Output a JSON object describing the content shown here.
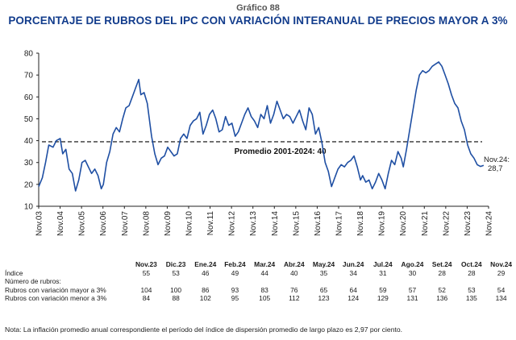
{
  "figure": {
    "number": "Gráfico 88",
    "title": "PORCENTAJE DE RUBROS DEL IPC CON VARIACIÓN INTERANUAL DE PRECIOS MAYOR A 3%"
  },
  "chart_data": {
    "type": "line",
    "ylim": [
      10,
      80
    ],
    "yticks": [
      10,
      20,
      30,
      40,
      50,
      60,
      70,
      80
    ],
    "xlabels": [
      "Nov.03",
      "Nov.04",
      "Nov.05",
      "Nov.06",
      "Nov.07",
      "Nov.08",
      "Nov.09",
      "Nov.10",
      "Nov.11",
      "Nov.12",
      "Nov.13",
      "Nov.14",
      "Nov.15",
      "Nov.16",
      "Nov.17",
      "Nov.18",
      "Nov.19",
      "Nov.20",
      "Nov.21",
      "Nov.22",
      "Nov.23",
      "Nov.24"
    ],
    "grid": false,
    "line_color": "#1f4fa3",
    "reference_line": {
      "label": "Promedio 2001-2024: 40",
      "value": 39.5,
      "style": "dashed"
    },
    "annotation": {
      "line1": "Nov.24:",
      "line2": "28,7"
    },
    "series": [
      {
        "points": [
          [
            2003.83,
            19
          ],
          [
            2004.0,
            23
          ],
          [
            2004.15,
            30
          ],
          [
            2004.3,
            38
          ],
          [
            2004.5,
            37
          ],
          [
            2004.65,
            40
          ],
          [
            2004.83,
            41
          ],
          [
            2004.95,
            34
          ],
          [
            2005.1,
            36
          ],
          [
            2005.25,
            27
          ],
          [
            2005.4,
            25
          ],
          [
            2005.55,
            17
          ],
          [
            2005.7,
            22
          ],
          [
            2005.85,
            30
          ],
          [
            2006.0,
            31
          ],
          [
            2006.15,
            28
          ],
          [
            2006.3,
            25
          ],
          [
            2006.45,
            27
          ],
          [
            2006.6,
            24
          ],
          [
            2006.75,
            18
          ],
          [
            2006.85,
            20
          ],
          [
            2007.0,
            30
          ],
          [
            2007.15,
            35
          ],
          [
            2007.3,
            43
          ],
          [
            2007.45,
            46
          ],
          [
            2007.6,
            44
          ],
          [
            2007.75,
            50
          ],
          [
            2007.9,
            55
          ],
          [
            2008.05,
            56
          ],
          [
            2008.2,
            60
          ],
          [
            2008.35,
            64
          ],
          [
            2008.5,
            68
          ],
          [
            2008.6,
            61
          ],
          [
            2008.75,
            62
          ],
          [
            2008.9,
            57
          ],
          [
            2009.1,
            42
          ],
          [
            2009.25,
            34
          ],
          [
            2009.4,
            29
          ],
          [
            2009.55,
            32
          ],
          [
            2009.7,
            33
          ],
          [
            2009.85,
            37
          ],
          [
            2010.0,
            35
          ],
          [
            2010.15,
            33
          ],
          [
            2010.3,
            34
          ],
          [
            2010.45,
            41
          ],
          [
            2010.6,
            43
          ],
          [
            2010.75,
            41
          ],
          [
            2010.9,
            47
          ],
          [
            2011.05,
            49
          ],
          [
            2011.2,
            50
          ],
          [
            2011.35,
            53
          ],
          [
            2011.5,
            43
          ],
          [
            2011.65,
            47
          ],
          [
            2011.8,
            52
          ],
          [
            2011.95,
            54
          ],
          [
            2012.1,
            50
          ],
          [
            2012.25,
            44
          ],
          [
            2012.4,
            45
          ],
          [
            2012.55,
            51
          ],
          [
            2012.7,
            47
          ],
          [
            2012.85,
            48
          ],
          [
            2013.0,
            42
          ],
          [
            2013.15,
            44
          ],
          [
            2013.3,
            48
          ],
          [
            2013.45,
            52
          ],
          [
            2013.6,
            55
          ],
          [
            2013.75,
            51
          ],
          [
            2013.9,
            49
          ],
          [
            2014.05,
            46
          ],
          [
            2014.2,
            52
          ],
          [
            2014.35,
            50
          ],
          [
            2014.5,
            56
          ],
          [
            2014.65,
            48
          ],
          [
            2014.8,
            52
          ],
          [
            2014.95,
            58
          ],
          [
            2015.1,
            54
          ],
          [
            2015.25,
            50
          ],
          [
            2015.4,
            52
          ],
          [
            2015.55,
            51
          ],
          [
            2015.7,
            48
          ],
          [
            2015.85,
            51
          ],
          [
            2016.0,
            54
          ],
          [
            2016.15,
            49
          ],
          [
            2016.3,
            45
          ],
          [
            2016.45,
            55
          ],
          [
            2016.6,
            52
          ],
          [
            2016.75,
            43
          ],
          [
            2016.9,
            46
          ],
          [
            2017.05,
            39
          ],
          [
            2017.2,
            30
          ],
          [
            2017.35,
            26
          ],
          [
            2017.5,
            19
          ],
          [
            2017.65,
            23
          ],
          [
            2017.8,
            27
          ],
          [
            2017.95,
            29
          ],
          [
            2018.1,
            28
          ],
          [
            2018.25,
            30
          ],
          [
            2018.4,
            31
          ],
          [
            2018.55,
            33
          ],
          [
            2018.7,
            28
          ],
          [
            2018.85,
            22
          ],
          [
            2018.95,
            24
          ],
          [
            2019.1,
            21
          ],
          [
            2019.25,
            22
          ],
          [
            2019.4,
            18
          ],
          [
            2019.55,
            21
          ],
          [
            2019.7,
            25
          ],
          [
            2019.85,
            22
          ],
          [
            2020.0,
            18
          ],
          [
            2020.15,
            25
          ],
          [
            2020.3,
            31
          ],
          [
            2020.45,
            29
          ],
          [
            2020.6,
            35
          ],
          [
            2020.75,
            32
          ],
          [
            2020.85,
            28
          ],
          [
            2021.0,
            36
          ],
          [
            2021.15,
            45
          ],
          [
            2021.3,
            54
          ],
          [
            2021.45,
            63
          ],
          [
            2021.6,
            70
          ],
          [
            2021.75,
            72
          ],
          [
            2021.9,
            71
          ],
          [
            2022.05,
            72
          ],
          [
            2022.2,
            74
          ],
          [
            2022.35,
            75
          ],
          [
            2022.5,
            76
          ],
          [
            2022.65,
            74
          ],
          [
            2022.8,
            70
          ],
          [
            2022.95,
            66
          ],
          [
            2023.1,
            61
          ],
          [
            2023.25,
            57
          ],
          [
            2023.4,
            55
          ],
          [
            2023.55,
            49
          ],
          [
            2023.7,
            45
          ],
          [
            2023.85,
            38
          ],
          [
            2024.0,
            34
          ],
          [
            2024.15,
            32
          ],
          [
            2024.3,
            29
          ],
          [
            2024.45,
            28.2
          ],
          [
            2024.6,
            28.7
          ]
        ]
      }
    ]
  },
  "table": {
    "columns": [
      "Nov.23",
      "Dic.23",
      "Ene.24",
      "Feb.24",
      "Mar.24",
      "Abr.24",
      "May.24",
      "Jun.24",
      "Jul.24",
      "Ago.24",
      "Set.24",
      "Oct.24",
      "Nov.24"
    ],
    "rows": [
      {
        "label": "Índice",
        "values": [
          "55",
          "53",
          "46",
          "49",
          "44",
          "40",
          "35",
          "34",
          "31",
          "30",
          "28",
          "28",
          "29"
        ]
      },
      {
        "label": "Número de rubros:",
        "values": [
          "",
          "",
          "",
          "",
          "",
          "",
          "",
          "",
          "",
          "",
          "",
          "",
          ""
        ]
      },
      {
        "label": "Rubros con variación mayor a 3%",
        "values": [
          "104",
          "100",
          "86",
          "93",
          "83",
          "76",
          "65",
          "64",
          "59",
          "57",
          "52",
          "53",
          "54"
        ]
      },
      {
        "label": "Rubros con variación menor a 3%",
        "values": [
          "84",
          "88",
          "102",
          "95",
          "105",
          "112",
          "123",
          "124",
          "129",
          "131",
          "136",
          "135",
          "134"
        ]
      }
    ]
  },
  "note": "Nota: La inflación promedio anual correspondiente el período del índice de dispersión promedio de largo plazo es 2,97 por ciento."
}
